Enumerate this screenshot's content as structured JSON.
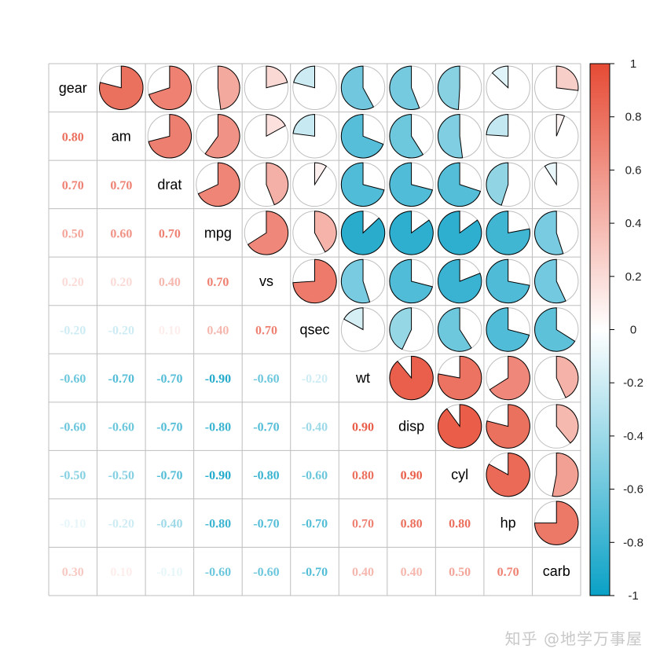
{
  "chart_data": {
    "type": "heatmap",
    "subtype": "mixed correlation matrix (lower: numbers, upper: pie)",
    "title": "",
    "variables": [
      "gear",
      "am",
      "drat",
      "mpg",
      "vs",
      "qsec",
      "wt",
      "disp",
      "cyl",
      "hp",
      "carb"
    ],
    "lower_labels": [
      [
        null,
        null,
        null,
        null,
        null,
        null,
        null,
        null,
        null,
        null,
        null
      ],
      [
        "0.80",
        null,
        null,
        null,
        null,
        null,
        null,
        null,
        null,
        null,
        null
      ],
      [
        "0.70",
        "0.70",
        null,
        null,
        null,
        null,
        null,
        null,
        null,
        null,
        null
      ],
      [
        "0.50",
        "0.60",
        "0.70",
        null,
        null,
        null,
        null,
        null,
        null,
        null,
        null
      ],
      [
        "0.20",
        "0.20",
        "0.40",
        "0.70",
        null,
        null,
        null,
        null,
        null,
        null,
        null
      ],
      [
        "-0.20",
        "-0.20",
        "0.10",
        "0.40",
        "0.70",
        null,
        null,
        null,
        null,
        null,
        null
      ],
      [
        "-0.60",
        "-0.70",
        "-0.70",
        "-0.90",
        "-0.60",
        "-0.20",
        null,
        null,
        null,
        null,
        null
      ],
      [
        "-0.60",
        "-0.60",
        "-0.70",
        "-0.80",
        "-0.70",
        "-0.40",
        "0.90",
        null,
        null,
        null,
        null
      ],
      [
        "-0.50",
        "-0.50",
        "-0.70",
        "-0.90",
        "-0.80",
        "-0.60",
        "0.80",
        "0.90",
        null,
        null,
        null
      ],
      [
        "-0.10",
        "-0.20",
        "-0.40",
        "-0.80",
        "-0.70",
        "-0.70",
        "0.70",
        "0.80",
        "0.80",
        null,
        null
      ],
      [
        "0.30",
        "0.10",
        "-0.10",
        "-0.60",
        "-0.60",
        "-0.70",
        "0.40",
        "0.40",
        "0.50",
        "0.70",
        null
      ]
    ],
    "upper_values": [
      [
        null,
        0.79,
        0.7,
        0.48,
        0.21,
        -0.21,
        -0.58,
        -0.56,
        -0.49,
        -0.13,
        0.27
      ],
      [
        null,
        null,
        0.71,
        0.6,
        0.17,
        -0.23,
        -0.69,
        -0.59,
        -0.52,
        -0.24,
        0.06
      ],
      [
        null,
        null,
        null,
        0.68,
        0.44,
        0.09,
        -0.71,
        -0.71,
        -0.7,
        -0.45,
        -0.09
      ],
      [
        null,
        null,
        null,
        null,
        0.66,
        0.42,
        -0.87,
        -0.85,
        -0.85,
        -0.78,
        -0.55
      ],
      [
        null,
        null,
        null,
        null,
        null,
        0.74,
        -0.55,
        -0.71,
        -0.81,
        -0.72,
        -0.57
      ],
      [
        null,
        null,
        null,
        null,
        null,
        null,
        -0.17,
        -0.43,
        -0.59,
        -0.71,
        -0.66
      ],
      [
        null,
        null,
        null,
        null,
        null,
        null,
        null,
        0.89,
        0.78,
        0.66,
        0.43
      ],
      [
        null,
        null,
        null,
        null,
        null,
        null,
        null,
        null,
        0.9,
        0.79,
        0.39
      ],
      [
        null,
        null,
        null,
        null,
        null,
        null,
        null,
        null,
        null,
        0.83,
        0.53
      ],
      [
        null,
        null,
        null,
        null,
        null,
        null,
        null,
        null,
        null,
        null,
        0.75
      ],
      [
        null,
        null,
        null,
        null,
        null,
        null,
        null,
        null,
        null,
        null,
        null
      ]
    ],
    "colorbar": {
      "ticks": [
        "1",
        "0.8",
        "0.6",
        "0.4",
        "0.2",
        "0",
        "-0.2",
        "-0.4",
        "-0.6",
        "-0.8",
        "-1"
      ],
      "range": [
        -1,
        1
      ],
      "position": "right"
    },
    "colors": {
      "positive": "#E64B35",
      "neutral": "#FFFFFF",
      "negative": "#0AA1C6",
      "grid": "#BEBEBE"
    }
  },
  "watermark": "知乎 @地学万事屋"
}
